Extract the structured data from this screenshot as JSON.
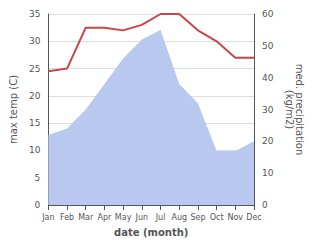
{
  "chart_data": {
    "type": "line",
    "xlabel": "date (month)",
    "ylabel": "max temp (C)",
    "y2label": "med. precipitation\n(kg/m2)",
    "categories": [
      "Jan",
      "Feb",
      "Mar",
      "Apr",
      "May",
      "Jun",
      "Jul",
      "Aug",
      "Sep",
      "Oct",
      "Nov",
      "Dec"
    ],
    "series": [
      {
        "type": "area",
        "color": "#b8c8ee",
        "axis": "y2",
        "values": [
          22,
          24,
          30,
          38,
          46,
          52,
          55,
          38,
          32,
          17,
          17,
          20
        ]
      },
      {
        "type": "line",
        "color": "#cc4444",
        "values": [
          24.5,
          25.0,
          32.5,
          32.5,
          32.0,
          33.0,
          35.0,
          35.0,
          32.0,
          30.0,
          27.0,
          27.0
        ]
      }
    ],
    "ylim": [
      0,
      35
    ],
    "yticks": [
      0,
      5,
      10,
      15,
      20,
      25,
      30,
      35
    ],
    "y2lim": [
      0,
      60
    ],
    "y2ticks": [
      0,
      10,
      20,
      30,
      40,
      50,
      60
    ],
    "grid": true
  }
}
